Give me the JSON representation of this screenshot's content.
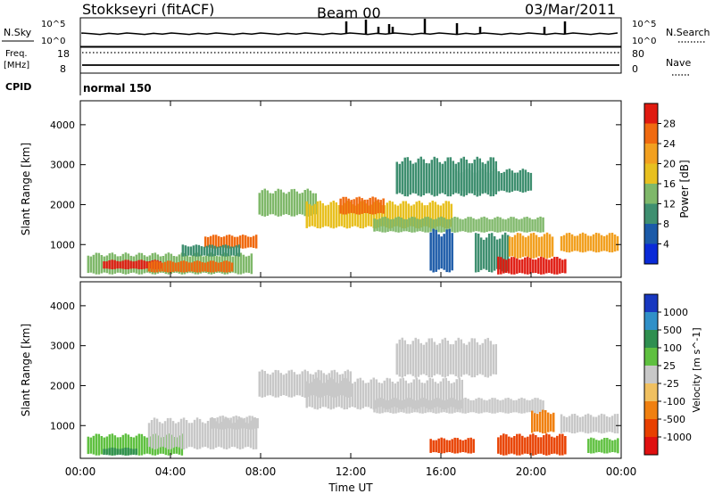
{
  "header": {
    "station": "Stokkseyri (fitACF)",
    "beam": "Beam 00",
    "date": "03/Mar/2011"
  },
  "left_labels": {
    "nsky": "N.Sky",
    "freq": "Freq.",
    "freq_unit": "[MHz]",
    "cpid": "CPID"
  },
  "right_labels": {
    "nsearch": "N.Search",
    "nave": "Nave"
  },
  "cpid_text": "normal 150",
  "noise_axis": {
    "left_top": "10^5",
    "left_bottom": "10^0",
    "right_top": "10^5",
    "right_bottom": "10^0"
  },
  "freq_axis": {
    "left_top": "18",
    "left_bottom": "8",
    "right_top": "80",
    "right_bottom": "0"
  },
  "colors": {
    "power_scale": [
      "#0a2ad8",
      "#1b5aa8",
      "#3f8f70",
      "#7fb86a",
      "#e8c020",
      "#f2a020",
      "#f06a10",
      "#e01a10"
    ],
    "velocity_scale": [
      "#1838c0",
      "#3090c8",
      "#2f8f50",
      "#5fc040",
      "#c8c8c8",
      "#f0c060",
      "#f08010",
      "#e84000",
      "#e01010"
    ],
    "ground_scatter": "#bebebe"
  },
  "chart_data": [
    {
      "type": "heatmap",
      "name": "power",
      "ylabel": "Slant Range [km]",
      "yticks": [
        "1000",
        "2000",
        "3000",
        "4000"
      ],
      "ylim": [
        180,
        4600
      ],
      "xlim": [
        0,
        24
      ],
      "colorbar": {
        "label": "Power [dB]",
        "ticks": [
          "4",
          "8",
          "12",
          "16",
          "20",
          "24",
          "28"
        ],
        "range": [
          0,
          32
        ]
      },
      "regions": [
        {
          "t0": 0.3,
          "t1": 7.6,
          "r0": 250,
          "r1": 800,
          "level": 3
        },
        {
          "t0": 1.0,
          "t1": 3.5,
          "r0": 380,
          "r1": 620,
          "level": 7
        },
        {
          "t0": 3.0,
          "t1": 6.8,
          "r0": 300,
          "r1": 600,
          "level": 6
        },
        {
          "t0": 5.5,
          "t1": 7.8,
          "r0": 900,
          "r1": 1250,
          "level": 6
        },
        {
          "t0": 4.5,
          "t1": 7.0,
          "r0": 700,
          "r1": 1000,
          "level": 2
        },
        {
          "t0": 7.9,
          "t1": 10.5,
          "r0": 1700,
          "r1": 2400,
          "level": 3
        },
        {
          "t0": 10.0,
          "t1": 16.5,
          "r0": 1400,
          "r1": 2100,
          "level": 4
        },
        {
          "t0": 11.5,
          "t1": 13.5,
          "r0": 1750,
          "r1": 2200,
          "level": 6
        },
        {
          "t0": 13.0,
          "t1": 20.5,
          "r0": 1300,
          "r1": 1700,
          "level": 3
        },
        {
          "t0": 14.0,
          "t1": 18.5,
          "r0": 2200,
          "r1": 3200,
          "level": 2
        },
        {
          "t0": 16.5,
          "t1": 20.0,
          "r0": 2300,
          "r1": 2900,
          "level": 2
        },
        {
          "t0": 15.5,
          "t1": 16.5,
          "r0": 300,
          "r1": 1400,
          "level": 1
        },
        {
          "t0": 17.5,
          "t1": 19.0,
          "r0": 300,
          "r1": 1300,
          "level": 2
        },
        {
          "t0": 18.5,
          "t1": 21.5,
          "r0": 250,
          "r1": 700,
          "level": 7
        },
        {
          "t0": 19.0,
          "t1": 21.0,
          "r0": 650,
          "r1": 1300,
          "level": 5
        },
        {
          "t0": 21.3,
          "t1": 23.9,
          "r0": 800,
          "r1": 1300,
          "level": 5
        }
      ]
    },
    {
      "type": "heatmap",
      "name": "velocity",
      "ylabel": "Slant Range [km]",
      "yticks": [
        "1000",
        "2000",
        "3000",
        "4000"
      ],
      "ylim": [
        180,
        4600
      ],
      "xlabel": "Time UT",
      "xticks": [
        "00:00",
        "04:00",
        "08:00",
        "12:00",
        "16:00",
        "20:00",
        "00:00"
      ],
      "xlim": [
        0,
        24
      ],
      "colorbar": {
        "label": "Velocity [m s^-1]",
        "ticks": [
          "1000",
          "500",
          "100",
          "25",
          "-25",
          "-100",
          "-500",
          "-1000"
        ],
        "range": [
          -1200,
          1200
        ]
      },
      "regions": [
        {
          "t0": 0.3,
          "t1": 4.5,
          "r0": 250,
          "r1": 800,
          "level": 3
        },
        {
          "t0": 1.0,
          "t1": 2.5,
          "r0": 250,
          "r1": 450,
          "level": 2
        },
        {
          "t0": 3.0,
          "t1": 7.8,
          "r0": 400,
          "r1": 1200,
          "level": 4
        },
        {
          "t0": 5.8,
          "t1": 7.9,
          "r0": 900,
          "r1": 1250,
          "level": 4
        },
        {
          "t0": 7.9,
          "t1": 12.0,
          "r0": 1700,
          "r1": 2400,
          "level": 4
        },
        {
          "t0": 10.0,
          "t1": 17.0,
          "r0": 1400,
          "r1": 2200,
          "level": 4
        },
        {
          "t0": 13.0,
          "t1": 20.5,
          "r0": 1300,
          "r1": 1700,
          "level": 4
        },
        {
          "t0": 14.0,
          "t1": 18.5,
          "r0": 2200,
          "r1": 3200,
          "level": 4
        },
        {
          "t0": 15.5,
          "t1": 17.5,
          "r0": 300,
          "r1": 700,
          "level": 7
        },
        {
          "t0": 18.5,
          "t1": 21.5,
          "r0": 250,
          "r1": 800,
          "level": 7
        },
        {
          "t0": 20.0,
          "t1": 21.0,
          "r0": 800,
          "r1": 1400,
          "level": 6
        },
        {
          "t0": 21.3,
          "t1": 23.9,
          "r0": 800,
          "r1": 1300,
          "level": 4
        },
        {
          "t0": 22.5,
          "t1": 23.9,
          "r0": 300,
          "r1": 700,
          "level": 3
        }
      ]
    }
  ]
}
